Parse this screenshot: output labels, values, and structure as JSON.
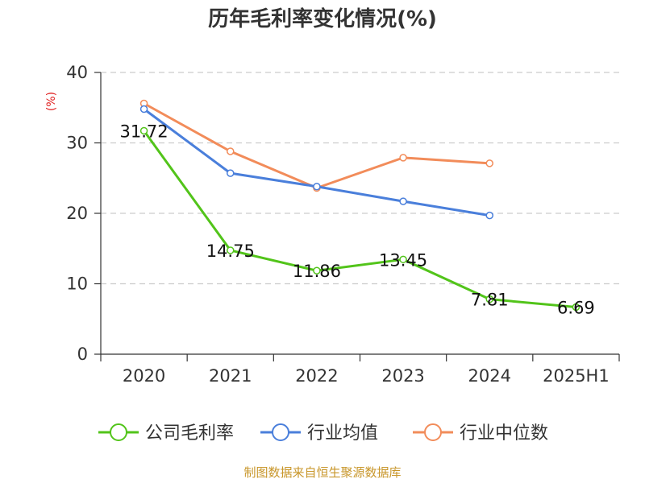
{
  "chart_data": {
    "type": "line",
    "title": "历年毛利率变化情况(%)",
    "y_unit": "(%)",
    "categories": [
      "2020",
      "2021",
      "2022",
      "2023",
      "2024",
      "2025H1"
    ],
    "ylim": [
      0,
      40
    ],
    "yticks": [
      0,
      10,
      20,
      30,
      40
    ],
    "grid": true,
    "legend_position": "bottom",
    "series": [
      {
        "name": "公司毛利率",
        "color": "#52c41a",
        "values": [
          31.72,
          14.75,
          11.86,
          13.45,
          7.81,
          6.69
        ],
        "show_labels": true
      },
      {
        "name": "行业均值",
        "color": "#4a7fdb",
        "values": [
          34.8,
          25.7,
          23.8,
          21.7,
          19.7,
          null
        ],
        "show_labels": false
      },
      {
        "name": "行业中位数",
        "color": "#f28c5a",
        "values": [
          35.6,
          28.8,
          23.6,
          27.9,
          27.1,
          null
        ],
        "show_labels": false
      }
    ],
    "source": "制图数据来自恒生聚源数据库",
    "colors": {
      "title": "#333333",
      "unit": "#e02020",
      "source": "#c8962a",
      "grid": "#cccccc",
      "axis": "#333333"
    }
  }
}
